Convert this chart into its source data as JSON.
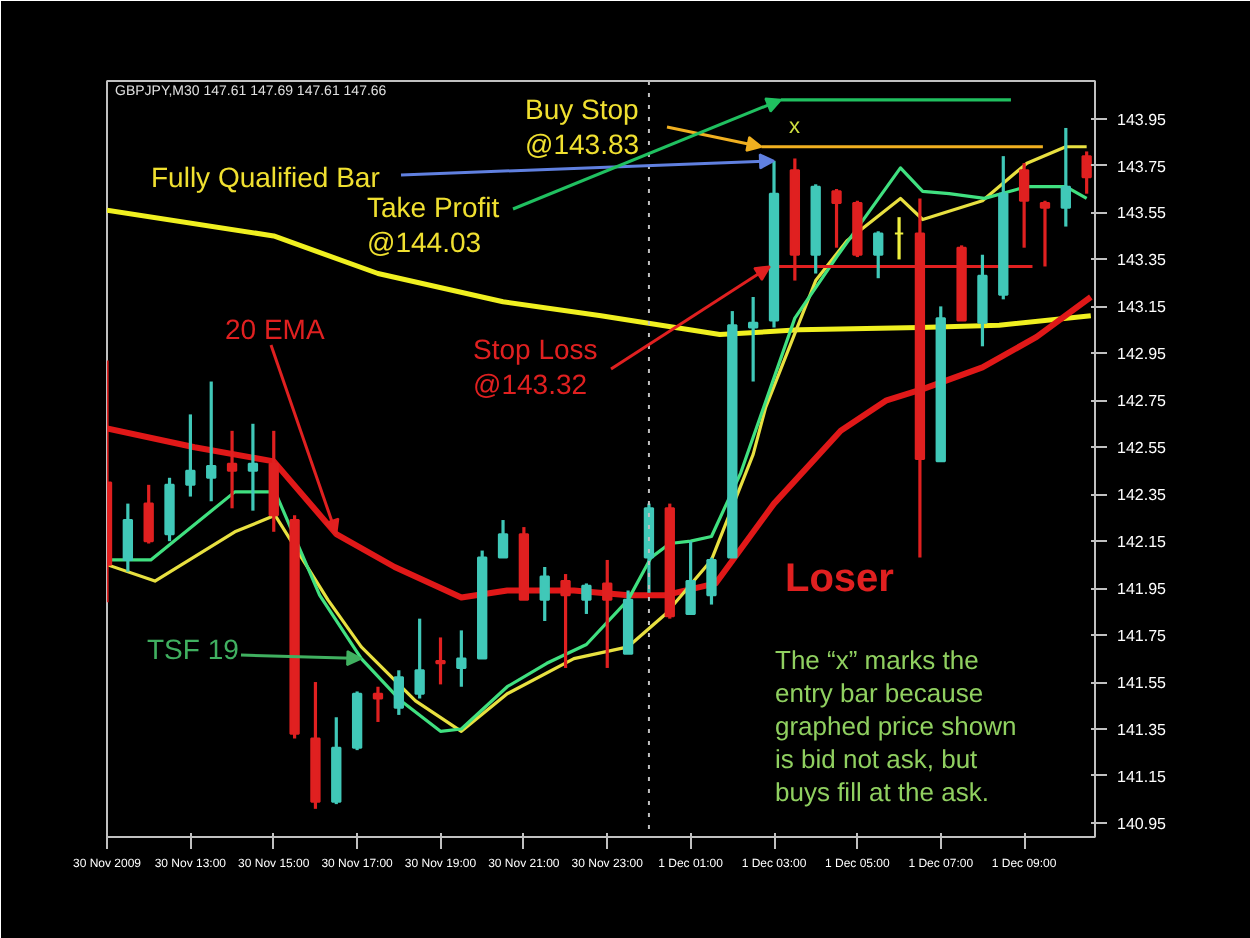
{
  "chart_data": {
    "type": "candlestick",
    "x": [
      "2009-11-30T11:00",
      "2009-11-30T11:30",
      "2009-11-30T12:00",
      "2009-11-30T12:30",
      "2009-11-30T13:00",
      "2009-11-30T13:30",
      "2009-11-30T14:00",
      "2009-11-30T14:30",
      "2009-11-30T15:00",
      "2009-11-30T15:30",
      "2009-11-30T16:00",
      "2009-11-30T16:30",
      "2009-11-30T17:00",
      "2009-11-30T17:30",
      "2009-11-30T18:00",
      "2009-11-30T18:30",
      "2009-11-30T19:00",
      "2009-11-30T19:30",
      "2009-11-30T20:00",
      "2009-11-30T20:30",
      "2009-11-30T21:00",
      "2009-11-30T21:30",
      "2009-11-30T22:00",
      "2009-11-30T22:30",
      "2009-11-30T23:00",
      "2009-11-30T23:30",
      "2009-12-01T00:00",
      "2009-12-01T00:30",
      "2009-12-01T01:00",
      "2009-12-01T01:30",
      "2009-12-01T02:00",
      "2009-12-01T02:30",
      "2009-12-01T03:00",
      "2009-12-01T03:30",
      "2009-12-01T04:00",
      "2009-12-01T04:30",
      "2009-12-01T05:00",
      "2009-12-01T05:30",
      "2009-12-01T06:00",
      "2009-12-01T06:30",
      "2009-12-01T07:00",
      "2009-12-01T07:30",
      "2009-12-01T08:00",
      "2009-12-01T08:30",
      "2009-12-01T09:00",
      "2009-12-01T09:30",
      "2009-12-01T10:00",
      "2009-12-01T10:30"
    ],
    "ohlc": [
      [
        142.4,
        142.92,
        141.89,
        142.05
      ],
      [
        142.07,
        142.31,
        142.02,
        142.24
      ],
      [
        142.31,
        142.39,
        142.14,
        142.15
      ],
      [
        142.18,
        142.42,
        142.15,
        142.39
      ],
      [
        142.39,
        142.69,
        142.34,
        142.45
      ],
      [
        142.42,
        142.83,
        142.32,
        142.47
      ],
      [
        142.48,
        142.62,
        142.29,
        142.45
      ],
      [
        142.45,
        142.65,
        142.28,
        142.48
      ],
      [
        142.48,
        142.62,
        142.19,
        142.26
      ],
      [
        142.24,
        142.26,
        141.31,
        141.33
      ],
      [
        141.31,
        141.55,
        141.01,
        141.04
      ],
      [
        141.04,
        141.4,
        141.03,
        141.27
      ],
      [
        141.27,
        141.51,
        141.26,
        141.5
      ],
      [
        141.5,
        141.53,
        141.38,
        141.48
      ],
      [
        141.44,
        141.6,
        141.41,
        141.57
      ],
      [
        141.5,
        141.82,
        141.48,
        141.6
      ],
      [
        141.64,
        141.74,
        141.54,
        141.63
      ],
      [
        141.61,
        141.77,
        141.53,
        141.65
      ],
      [
        141.65,
        142.11,
        141.65,
        142.08
      ],
      [
        142.08,
        142.24,
        142.08,
        142.18
      ],
      [
        142.18,
        142.21,
        141.9,
        141.9
      ],
      [
        141.9,
        142.04,
        141.81,
        142.0
      ],
      [
        141.98,
        142.01,
        141.61,
        141.92
      ],
      [
        141.9,
        141.97,
        141.84,
        141.96
      ],
      [
        141.97,
        142.07,
        141.61,
        141.9
      ],
      [
        141.67,
        141.94,
        141.67,
        141.9
      ],
      [
        142.08,
        142.31,
        141.93,
        142.29
      ],
      [
        142.29,
        142.31,
        141.82,
        141.83
      ],
      [
        141.84,
        142.15,
        141.84,
        141.98
      ],
      [
        141.92,
        142.08,
        141.88,
        142.07
      ],
      [
        142.08,
        143.13,
        142.08,
        143.07
      ],
      [
        143.06,
        143.19,
        142.83,
        143.08
      ],
      [
        143.09,
        143.77,
        143.06,
        143.63
      ],
      [
        143.73,
        143.78,
        143.26,
        143.37
      ],
      [
        143.37,
        143.67,
        143.29,
        143.66
      ],
      [
        143.64,
        143.65,
        143.4,
        143.59
      ],
      [
        143.59,
        143.6,
        143.36,
        143.37
      ],
      [
        143.37,
        143.47,
        143.27,
        143.46
      ],
      [
        143.46,
        143.53,
        143.35,
        143.46
      ],
      [
        143.46,
        143.61,
        142.08,
        142.5
      ],
      [
        142.49,
        143.15,
        142.49,
        143.1
      ],
      [
        143.4,
        143.41,
        143.09,
        143.09
      ],
      [
        143.08,
        143.37,
        142.98,
        143.28
      ],
      [
        143.2,
        143.79,
        143.18,
        143.63
      ],
      [
        143.73,
        143.76,
        143.4,
        143.6
      ],
      [
        143.59,
        143.6,
        143.32,
        143.57
      ],
      [
        143.57,
        143.91,
        143.49,
        143.66
      ],
      [
        143.79,
        143.81,
        143.63,
        143.7
      ]
    ],
    "colors": [
      "#e02020",
      "#40c8b8",
      "#e02020",
      "#40c8b8",
      "#40c8b8",
      "#40c8b8",
      "#e02020",
      "#40c8b8",
      "#e02020",
      "#e02020",
      "#e02020",
      "#40c8b8",
      "#40c8b8",
      "#e02020",
      "#40c8b8",
      "#40c8b8",
      "#e02020",
      "#40c8b8",
      "#40c8b8",
      "#40c8b8",
      "#e02020",
      "#40c8b8",
      "#e02020",
      "#40c8b8",
      "#e02020",
      "#40c8b8",
      "#40c8b8",
      "#e02020",
      "#40c8b8",
      "#40c8b8",
      "#40c8b8",
      "#40c8b8",
      "#40c8b8",
      "#e02020",
      "#40c8b8",
      "#e02020",
      "#e02020",
      "#40c8b8",
      "#f0f040",
      "#e02020",
      "#40c8b8",
      "#e02020",
      "#40c8b8",
      "#40c8b8",
      "#e02020",
      "#e02020",
      "#40c8b8",
      "#e02020"
    ],
    "series": [
      {
        "type": "line",
        "color": "#f0f020",
        "x": [
          "2009-11-30T11:00",
          "2009-11-30T15:00",
          "2009-11-30T17:30",
          "2009-11-30T20:30",
          "2009-11-30T22:51",
          "2009-12-01T01:42",
          "2009-12-01T03:36",
          "2009-12-01T06:30",
          "2009-12-01T08:24",
          "2009-12-01T10:36"
        ],
        "values": [
          143.56,
          143.45,
          143.29,
          143.17,
          143.11,
          143.03,
          143.05,
          143.06,
          143.07,
          143.11
        ]
      },
      {
        "type": "line",
        "color": "#e01818",
        "x": [
          "2009-11-30T11:00",
          "2009-11-30T13:06",
          "2009-11-30T15:00",
          "2009-11-30T16:30",
          "2009-11-30T17:54",
          "2009-11-30T19:30",
          "2009-11-30T20:36",
          "2009-11-30T22:12",
          "2009-11-30T23:30",
          "2009-12-01T00:24",
          "2009-12-01T01:36",
          "2009-12-01T03:00",
          "2009-12-01T04:36",
          "2009-12-01T05:42",
          "2009-12-01T06:36",
          "2009-12-01T08:00",
          "2009-12-01T09:18",
          "2009-12-01T10:36"
        ],
        "values": [
          142.63,
          142.55,
          142.49,
          142.18,
          142.04,
          141.91,
          141.94,
          141.94,
          141.92,
          141.92,
          141.97,
          142.31,
          142.62,
          142.75,
          142.8,
          142.89,
          143.02,
          143.19
        ]
      },
      {
        "type": "line",
        "color": "#e8e040",
        "x": [
          "2009-11-30T11:00",
          "2009-11-30T12:09",
          "2009-11-30T14:04",
          "2009-11-30T15:02",
          "2009-11-30T16:18",
          "2009-11-30T17:06",
          "2009-11-30T18:24",
          "2009-11-30T19:30",
          "2009-11-30T20:36",
          "2009-11-30T22:12",
          "2009-11-30T23:30",
          "2009-12-01T00:24",
          "2009-12-01T01:30",
          "2009-12-01T02:30",
          "2009-12-01T02:48",
          "2009-12-01T04:00",
          "2009-12-01T04:45",
          "2009-12-01T06:02",
          "2009-12-01T06:34",
          "2009-12-01T08:00",
          "2009-12-01T09:04",
          "2009-12-01T10:00",
          "2009-12-01T10:30"
        ],
        "values": [
          142.05,
          141.98,
          142.19,
          142.26,
          141.9,
          141.7,
          141.47,
          141.34,
          141.5,
          141.65,
          141.7,
          141.84,
          142.07,
          142.52,
          142.72,
          143.26,
          143.43,
          143.61,
          143.52,
          143.6,
          143.76,
          143.83,
          143.83
        ]
      },
      {
        "type": "line",
        "color": "#40e080",
        "x": [
          "2009-11-30T11:00",
          "2009-11-30T12:03",
          "2009-11-30T14:04",
          "2009-11-30T15:02",
          "2009-11-30T16:06",
          "2009-11-30T17:06",
          "2009-11-30T18:03",
          "2009-11-30T19:00",
          "2009-11-30T19:30",
          "2009-11-30T20:36",
          "2009-11-30T21:33",
          "2009-11-30T22:30",
          "2009-11-30T23:30",
          "2009-12-01T00:03",
          "2009-12-01T00:30",
          "2009-12-01T01:00",
          "2009-12-01T01:30",
          "2009-12-01T02:12",
          "2009-12-01T03:30",
          "2009-12-01T04:30",
          "2009-12-01T06:02",
          "2009-12-01T06:34",
          "2009-12-01T07:12",
          "2009-12-01T08:03",
          "2009-12-01T09:04",
          "2009-12-01T10:00",
          "2009-12-01T10:30"
        ],
        "values": [
          142.07,
          142.07,
          142.36,
          142.36,
          141.92,
          141.65,
          141.47,
          141.34,
          141.35,
          141.53,
          141.63,
          141.71,
          141.9,
          142.08,
          142.14,
          142.15,
          142.17,
          142.44,
          143.1,
          143.36,
          143.74,
          143.64,
          143.63,
          143.61,
          143.66,
          143.66,
          143.61
        ]
      },
      {
        "type": "line",
        "color": "#20c060",
        "x": [
          "2009-12-01T03:10",
          "2009-12-01T08:41"
        ],
        "values": [
          144.03,
          144.03
        ]
      },
      {
        "type": "line",
        "color": "#f0b020",
        "x": [
          "2009-12-01T02:42",
          "2009-12-01T09:27"
        ],
        "values": [
          143.83,
          143.83
        ]
      },
      {
        "type": "line",
        "color": "#e02020",
        "x": [
          "2009-12-01T02:54",
          "2009-12-01T09:12"
        ],
        "values": [
          143.32,
          143.32
        ]
      }
    ],
    "ref_lines": [
      {
        "axis": "x",
        "value": "2009-12-01T00:00",
        "color": "#c0c0c0",
        "line_style": "dotted"
      }
    ],
    "xlim": [
      "2009-11-30T11:00",
      "2009-12-01T10:42"
    ],
    "ylim": [
      140.89,
      144.11
    ],
    "xticks": [
      {
        "value": "2009-11-30T11:00",
        "label": "30 Nov 2009"
      },
      {
        "value": "2009-11-30T13:00",
        "label": "30 Nov 13:00"
      },
      {
        "value": "2009-11-30T15:00",
        "label": "30 Nov 15:00"
      },
      {
        "value": "2009-11-30T17:00",
        "label": "30 Nov 17:00"
      },
      {
        "value": "2009-11-30T19:00",
        "label": "30 Nov 19:00"
      },
      {
        "value": "2009-11-30T21:00",
        "label": "30 Nov 21:00"
      },
      {
        "value": "2009-11-30T23:00",
        "label": "30 Nov 23:00"
      },
      {
        "value": "2009-12-01T01:00",
        "label": "1 Dec 01:00"
      },
      {
        "value": "2009-12-01T03:00",
        "label": "1 Dec 03:00"
      },
      {
        "value": "2009-12-01T05:00",
        "label": "1 Dec 05:00"
      },
      {
        "value": "2009-12-01T07:00",
        "label": "1 Dec 07:00"
      },
      {
        "value": "2009-12-01T09:00",
        "label": "1 Dec 09:00"
      }
    ],
    "yticks": [
      140.95,
      141.15,
      141.35,
      141.55,
      141.75,
      141.95,
      142.15,
      142.35,
      142.55,
      142.75,
      142.95,
      143.15,
      143.35,
      143.55,
      143.75,
      143.95
    ],
    "annotations": [
      "GBPJPY,M30  147.61 147.69 147.61 147.66",
      {
        "text": "Buy Stop\n@143.83",
        "x": "2009-12-01T02:42",
        "y": 143.83
      },
      {
        "text": "Fully Qualified Bar",
        "x": "2009-12-01T03:00",
        "y": 143.77
      },
      {
        "text": "Take Profit\n@144.03",
        "x": "2009-12-01T03:10",
        "y": 144.03
      },
      {
        "text": "20 EMA",
        "x": "2009-11-30T16:30",
        "y": 142.18
      },
      {
        "text": "Stop Loss\n@143.32",
        "x": "2009-12-01T02:54",
        "y": 143.32
      },
      {
        "text": "TSF 19",
        "x": "2009-11-30T17:06",
        "y": 141.65
      },
      "Loser",
      "The “x” marks the\nentry bar because\ngraphed price shown\nis bid not ask, but\nbuys fill at the ask.",
      "x"
    ],
    "grid": false
  }
}
